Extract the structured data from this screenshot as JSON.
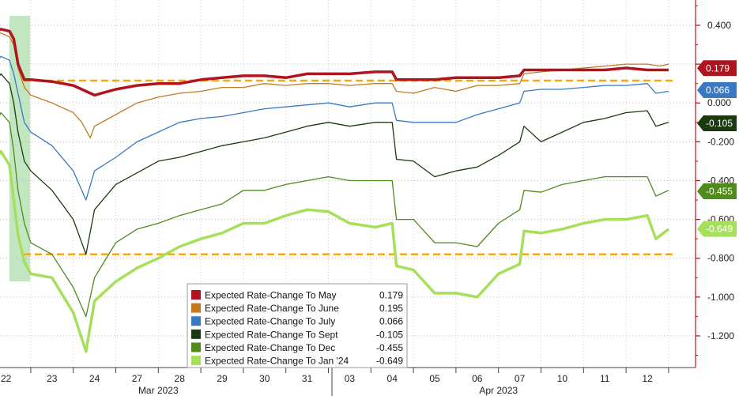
{
  "chart_data": {
    "type": "line",
    "yticks": [
      0.4,
      0.2,
      0.0,
      -0.2,
      -0.4,
      -0.6,
      -0.8,
      -1.0,
      -1.2
    ],
    "ytick_labels": [
      "0.400",
      "0.200",
      "0.000",
      "-0.200",
      "-0.400",
      "-0.600",
      "-0.800",
      "-1.000",
      "-1.200"
    ],
    "ylim": [
      -1.38,
      0.5
    ],
    "x_dates": [
      "22",
      "23",
      "24",
      "27",
      "28",
      "29",
      "30",
      "31",
      "03",
      "04",
      "05",
      "06",
      "07",
      "10",
      "11",
      "12"
    ],
    "months": [
      {
        "label": "Mar 2023",
        "from": 0,
        "to": 7
      },
      {
        "label": "Apr 2023",
        "from": 8,
        "to": 15
      }
    ],
    "highlight_band": {
      "from": 0.0,
      "to": 0.3
    },
    "reference_lines": [
      0.115,
      -0.78
    ],
    "series": [
      {
        "name": "Expected Rate-Change To May",
        "last": 0.179,
        "color": "#b0141f",
        "points": [
          [
            -0.35,
            0.37
          ],
          [
            -0.2,
            0.38
          ],
          [
            0,
            0.37
          ],
          [
            0.1,
            0.33
          ],
          [
            0.2,
            0.2
          ],
          [
            0.35,
            0.12
          ],
          [
            0.5,
            0.12
          ],
          [
            1,
            0.11
          ],
          [
            1.5,
            0.09
          ],
          [
            2,
            0.04
          ],
          [
            2.5,
            0.07
          ],
          [
            3,
            0.09
          ],
          [
            3.5,
            0.1
          ],
          [
            4,
            0.1
          ],
          [
            4.5,
            0.12
          ],
          [
            5,
            0.13
          ],
          [
            5.5,
            0.14
          ],
          [
            6,
            0.14
          ],
          [
            6.5,
            0.13
          ],
          [
            7,
            0.15
          ],
          [
            7.5,
            0.15
          ],
          [
            8,
            0.15
          ],
          [
            8.6,
            0.16
          ],
          [
            9,
            0.16
          ],
          [
            9.1,
            0.12
          ],
          [
            9.5,
            0.12
          ],
          [
            10,
            0.12
          ],
          [
            10.5,
            0.13
          ],
          [
            11,
            0.13
          ],
          [
            11.5,
            0.13
          ],
          [
            12,
            0.14
          ],
          [
            12.1,
            0.17
          ],
          [
            12.5,
            0.17
          ],
          [
            13,
            0.17
          ],
          [
            13.5,
            0.17
          ],
          [
            14,
            0.17
          ],
          [
            14.5,
            0.18
          ],
          [
            15,
            0.17
          ],
          [
            15.3,
            0.17
          ],
          [
            15.5,
            0.17
          ]
        ]
      },
      {
        "name": "Expected Rate-Change To June",
        "last": 0.195,
        "color": "#c07a21",
        "points": [
          [
            -0.35,
            0.35
          ],
          [
            -0.2,
            0.36
          ],
          [
            0,
            0.34
          ],
          [
            0.1,
            0.3
          ],
          [
            0.2,
            0.18
          ],
          [
            0.35,
            0.08
          ],
          [
            0.5,
            0.04
          ],
          [
            1,
            0.0
          ],
          [
            1.5,
            -0.05
          ],
          [
            1.7,
            -0.1
          ],
          [
            1.9,
            -0.18
          ],
          [
            2,
            -0.12
          ],
          [
            2.5,
            -0.06
          ],
          [
            3,
            0.0
          ],
          [
            3.5,
            0.03
          ],
          [
            4,
            0.05
          ],
          [
            4.5,
            0.06
          ],
          [
            5,
            0.08
          ],
          [
            5.5,
            0.08
          ],
          [
            6,
            0.1
          ],
          [
            6.5,
            0.09
          ],
          [
            7,
            0.1
          ],
          [
            7.5,
            0.1
          ],
          [
            8,
            0.09
          ],
          [
            8.6,
            0.1
          ],
          [
            9,
            0.1
          ],
          [
            9.1,
            0.06
          ],
          [
            9.5,
            0.05
          ],
          [
            10,
            0.08
          ],
          [
            10.5,
            0.06
          ],
          [
            11,
            0.09
          ],
          [
            11.5,
            0.09
          ],
          [
            12,
            0.1
          ],
          [
            12.1,
            0.15
          ],
          [
            12.5,
            0.16
          ],
          [
            13,
            0.17
          ],
          [
            13.5,
            0.18
          ],
          [
            14,
            0.19
          ],
          [
            14.5,
            0.2
          ],
          [
            15,
            0.2
          ],
          [
            15.3,
            0.19
          ],
          [
            15.5,
            0.2
          ]
        ]
      },
      {
        "name": "Expected Rate-Change To July",
        "last": 0.066,
        "color": "#3a78c2",
        "points": [
          [
            -0.35,
            0.2
          ],
          [
            -0.2,
            0.24
          ],
          [
            0,
            0.22
          ],
          [
            0.1,
            0.15
          ],
          [
            0.2,
            0.05
          ],
          [
            0.35,
            -0.1
          ],
          [
            0.5,
            -0.15
          ],
          [
            1,
            -0.22
          ],
          [
            1.5,
            -0.35
          ],
          [
            1.8,
            -0.5
          ],
          [
            2,
            -0.35
          ],
          [
            2.5,
            -0.28
          ],
          [
            3,
            -0.2
          ],
          [
            3.5,
            -0.15
          ],
          [
            4,
            -0.1
          ],
          [
            4.5,
            -0.08
          ],
          [
            5,
            -0.07
          ],
          [
            5.5,
            -0.05
          ],
          [
            6,
            -0.03
          ],
          [
            6.5,
            -0.02
          ],
          [
            7,
            -0.01
          ],
          [
            7.5,
            0.0
          ],
          [
            8,
            -0.02
          ],
          [
            8.6,
            0.0
          ],
          [
            9,
            0.0
          ],
          [
            9.1,
            -0.09
          ],
          [
            9.5,
            -0.1
          ],
          [
            10,
            -0.1
          ],
          [
            10.5,
            -0.1
          ],
          [
            11,
            -0.06
          ],
          [
            11.5,
            -0.03
          ],
          [
            12,
            0.0
          ],
          [
            12.1,
            0.06
          ],
          [
            12.5,
            0.07
          ],
          [
            13,
            0.07
          ],
          [
            13.5,
            0.08
          ],
          [
            14,
            0.09
          ],
          [
            14.5,
            0.09
          ],
          [
            15,
            0.1
          ],
          [
            15.2,
            0.05
          ],
          [
            15.5,
            0.06
          ]
        ]
      },
      {
        "name": "Expected Rate-Change To Sept",
        "last": -0.105,
        "color": "#1c3a10",
        "points": [
          [
            -0.35,
            0.1
          ],
          [
            -0.2,
            0.15
          ],
          [
            0,
            0.1
          ],
          [
            0.1,
            0.0
          ],
          [
            0.2,
            -0.15
          ],
          [
            0.35,
            -0.3
          ],
          [
            0.5,
            -0.35
          ],
          [
            1,
            -0.45
          ],
          [
            1.5,
            -0.6
          ],
          [
            1.8,
            -0.78
          ],
          [
            2,
            -0.55
          ],
          [
            2.5,
            -0.42
          ],
          [
            3,
            -0.36
          ],
          [
            3.5,
            -0.3
          ],
          [
            4,
            -0.28
          ],
          [
            4.5,
            -0.25
          ],
          [
            5,
            -0.22
          ],
          [
            5.5,
            -0.2
          ],
          [
            6,
            -0.18
          ],
          [
            6.5,
            -0.15
          ],
          [
            7,
            -0.12
          ],
          [
            7.5,
            -0.1
          ],
          [
            8,
            -0.12
          ],
          [
            8.6,
            -0.1
          ],
          [
            9,
            -0.1
          ],
          [
            9.1,
            -0.29
          ],
          [
            9.5,
            -0.3
          ],
          [
            10,
            -0.38
          ],
          [
            10.5,
            -0.35
          ],
          [
            11,
            -0.33
          ],
          [
            11.5,
            -0.27
          ],
          [
            12,
            -0.2
          ],
          [
            12.1,
            -0.12
          ],
          [
            12.5,
            -0.2
          ],
          [
            13,
            -0.15
          ],
          [
            13.5,
            -0.1
          ],
          [
            14,
            -0.08
          ],
          [
            14.5,
            -0.05
          ],
          [
            15,
            -0.04
          ],
          [
            15.2,
            -0.12
          ],
          [
            15.5,
            -0.1
          ]
        ]
      },
      {
        "name": "Expected Rate-Change To Dec",
        "last": -0.455,
        "color": "#4f8a1c",
        "points": [
          [
            -0.35,
            -0.12
          ],
          [
            -0.2,
            -0.05
          ],
          [
            0,
            -0.1
          ],
          [
            0.1,
            -0.25
          ],
          [
            0.2,
            -0.45
          ],
          [
            0.35,
            -0.62
          ],
          [
            0.5,
            -0.72
          ],
          [
            1,
            -0.78
          ],
          [
            1.5,
            -0.95
          ],
          [
            1.8,
            -1.1
          ],
          [
            2,
            -0.9
          ],
          [
            2.5,
            -0.72
          ],
          [
            3,
            -0.65
          ],
          [
            3.5,
            -0.62
          ],
          [
            4,
            -0.58
          ],
          [
            4.5,
            -0.55
          ],
          [
            5,
            -0.52
          ],
          [
            5.5,
            -0.45
          ],
          [
            6,
            -0.45
          ],
          [
            6.5,
            -0.42
          ],
          [
            7,
            -0.4
          ],
          [
            7.5,
            -0.38
          ],
          [
            8,
            -0.4
          ],
          [
            8.6,
            -0.4
          ],
          [
            9,
            -0.4
          ],
          [
            9.1,
            -0.6
          ],
          [
            9.5,
            -0.6
          ],
          [
            10,
            -0.72
          ],
          [
            10.5,
            -0.72
          ],
          [
            11,
            -0.74
          ],
          [
            11.5,
            -0.62
          ],
          [
            12,
            -0.55
          ],
          [
            12.1,
            -0.45
          ],
          [
            12.5,
            -0.46
          ],
          [
            13,
            -0.42
          ],
          [
            13.5,
            -0.4
          ],
          [
            14,
            -0.38
          ],
          [
            14.5,
            -0.38
          ],
          [
            15,
            -0.38
          ],
          [
            15.2,
            -0.48
          ],
          [
            15.5,
            -0.45
          ]
        ]
      },
      {
        "name": "Expected Rate-Change To Jan '24",
        "last": -0.649,
        "color": "#a6e05a",
        "points": [
          [
            -0.35,
            -0.3
          ],
          [
            -0.2,
            -0.25
          ],
          [
            0,
            -0.32
          ],
          [
            0.1,
            -0.5
          ],
          [
            0.2,
            -0.68
          ],
          [
            0.35,
            -0.82
          ],
          [
            0.5,
            -0.88
          ],
          [
            1,
            -0.9
          ],
          [
            1.5,
            -1.08
          ],
          [
            1.8,
            -1.28
          ],
          [
            2,
            -1.02
          ],
          [
            2.5,
            -0.92
          ],
          [
            3,
            -0.85
          ],
          [
            3.5,
            -0.8
          ],
          [
            4,
            -0.74
          ],
          [
            4.5,
            -0.7
          ],
          [
            5,
            -0.67
          ],
          [
            5.5,
            -0.62
          ],
          [
            6,
            -0.62
          ],
          [
            6.5,
            -0.58
          ],
          [
            7,
            -0.55
          ],
          [
            7.5,
            -0.56
          ],
          [
            8,
            -0.62
          ],
          [
            8.6,
            -0.64
          ],
          [
            9,
            -0.62
          ],
          [
            9.1,
            -0.84
          ],
          [
            9.5,
            -0.86
          ],
          [
            10,
            -0.98
          ],
          [
            10.5,
            -0.98
          ],
          [
            11,
            -1.0
          ],
          [
            11.5,
            -0.88
          ],
          [
            12,
            -0.83
          ],
          [
            12.1,
            -0.66
          ],
          [
            12.5,
            -0.67
          ],
          [
            13,
            -0.65
          ],
          [
            13.5,
            -0.62
          ],
          [
            14,
            -0.6
          ],
          [
            14.5,
            -0.6
          ],
          [
            15,
            -0.58
          ],
          [
            15.2,
            -0.7
          ],
          [
            15.5,
            -0.65
          ]
        ]
      }
    ],
    "legend": [
      {
        "label": "Expected Rate-Change To May",
        "value": "0.179"
      },
      {
        "label": "Expected Rate-Change To June",
        "value": "0.195"
      },
      {
        "label": "Expected Rate-Change To July",
        "value": "0.066"
      },
      {
        "label": "Expected Rate-Change To Sept",
        "value": "-0.105"
      },
      {
        "label": "Expected Rate-Change To Dec",
        "value": "-0.455"
      },
      {
        "label": "Expected Rate-Change To Jan '24",
        "value": "-0.649"
      }
    ],
    "badges": [
      {
        "label": "0.179",
        "value": 0.179,
        "color": "#b0141f"
      },
      {
        "label": "0.066",
        "value": 0.066,
        "color": "#3a78c2"
      },
      {
        "label": "-0.105",
        "value": -0.105,
        "color": "#1c3a10"
      },
      {
        "label": "-0.455",
        "value": -0.455,
        "color": "#4f8a1c"
      },
      {
        "label": "-0.649",
        "value": -0.649,
        "color": "#a6e05a"
      }
    ],
    "grid": true,
    "legend_position": "bottom-center"
  }
}
